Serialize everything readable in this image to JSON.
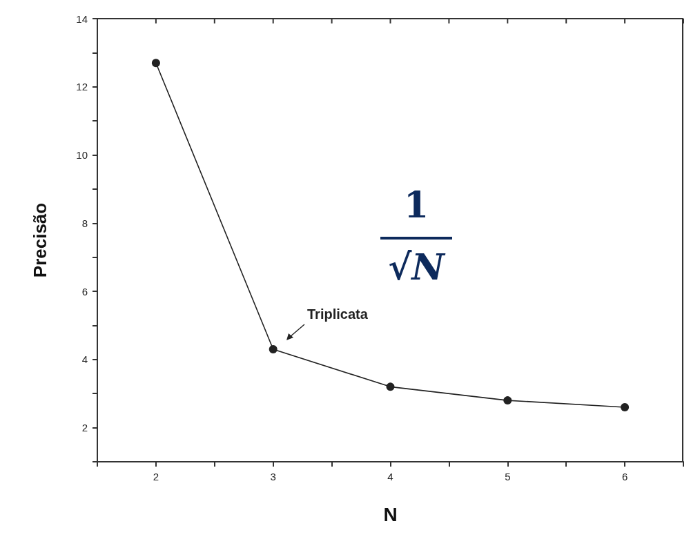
{
  "chart_data": {
    "type": "line",
    "xlabel": "N",
    "ylabel": "Precisão",
    "x": [
      2,
      3,
      4,
      5,
      6
    ],
    "series": [
      {
        "color": "#222222",
        "values": [
          12.7,
          4.3,
          3.2,
          2.8,
          2.6
        ]
      }
    ],
    "xlim": [
      1.5,
      6.5
    ],
    "xticks": [
      {
        "value": 1.5,
        "label": null
      },
      2,
      {
        "value": 2.5,
        "label": null
      },
      3,
      {
        "value": 3.5,
        "label": null
      },
      4,
      {
        "value": 4.5,
        "label": null
      },
      5,
      {
        "value": 5.5,
        "label": null
      },
      6,
      {
        "value": 6.5,
        "label": null
      }
    ],
    "ylim": [
      1,
      14
    ],
    "yticks": [
      {
        "value": 1,
        "label": null
      },
      2,
      {
        "value": 3,
        "label": null
      },
      4,
      {
        "value": 5,
        "label": null
      },
      6,
      {
        "value": 7,
        "label": null
      },
      8,
      {
        "value": 9,
        "label": null
      },
      10,
      {
        "value": 11,
        "label": null
      },
      12,
      {
        "value": 13,
        "label": null
      },
      14
    ],
    "marker": "circle",
    "line_style": "solid",
    "grid": false,
    "annotations": [
      "Triplicata",
      "1",
      "√N"
    ]
  }
}
